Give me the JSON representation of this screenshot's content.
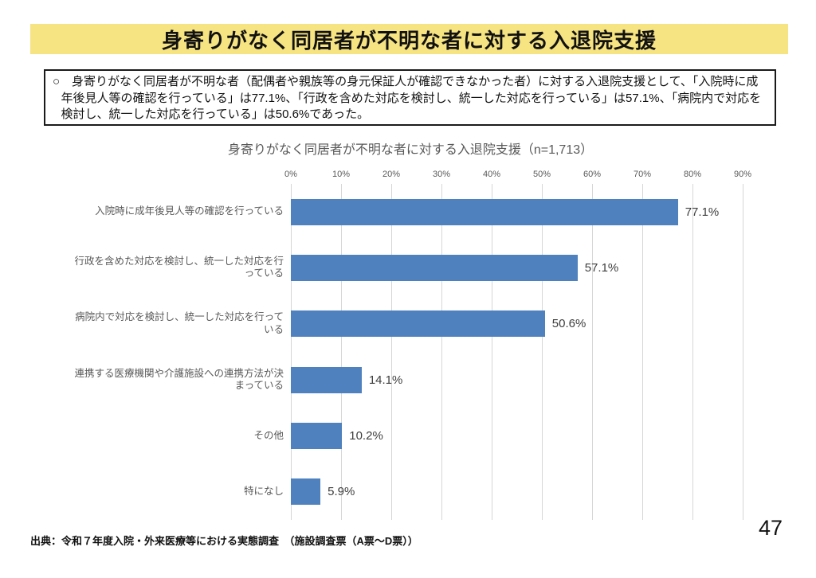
{
  "page": {
    "title": "身寄りがなく同居者が不明な者に対する入退院支援",
    "source": "出典：令和７年度入院・外来医療等における実態調査　（施設調査票（A票～D票））",
    "page_number": "47"
  },
  "summary": {
    "text": "○　身寄りがなく同居者が不明な者（配偶者や親族等の身元保証人が確認できなかった者）に対する入退院支援として、「入院時に成年後見人等の確認を行っている」は77.1%、「行政を含めた対応を検討し、統一した対応を行っている」は57.1%、「病院内で対応を検討し、統一した対応を行っている」は50.6%であった。"
  },
  "chart_data": {
    "type": "bar",
    "orientation": "horizontal",
    "title": "身寄りがなく同居者が不明な者に対する入退院支援（n=1,713）",
    "n": "1,713",
    "categories": [
      "入院時に成年後見人等の確認を行っている",
      "行政を含めた対応を検討し、統一した対応を行っている",
      "病院内で対応を検討し、統一した対応を行っている",
      "連携する医療機関や介護施設への連携方法が決まっている",
      "その他",
      "特になし"
    ],
    "values": [
      77.1,
      57.1,
      50.6,
      14.1,
      10.2,
      5.9
    ],
    "value_labels": [
      "77.1%",
      "57.1%",
      "50.6%",
      "14.1%",
      "10.2%",
      "5.9%"
    ],
    "xlim": [
      0,
      90
    ],
    "x_ticks": [
      "0%",
      "10%",
      "20%",
      "30%",
      "40%",
      "50%",
      "60%",
      "70%",
      "80%",
      "90%"
    ],
    "grid": true,
    "legend": "none",
    "bar_color": "#4E81BD",
    "grid_color": "#D6D6D6",
    "axis_text_color": "#595959"
  }
}
